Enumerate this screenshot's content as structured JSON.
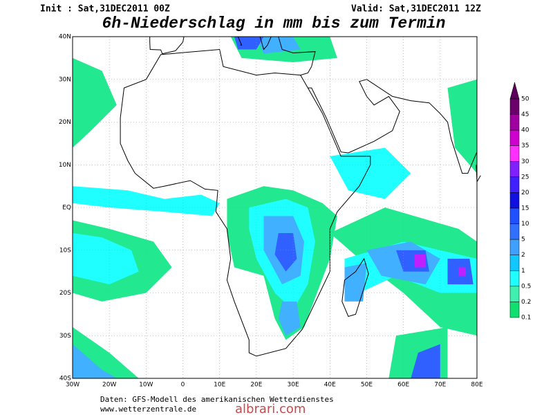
{
  "header": {
    "init": "Init : Sat,31DEC2011 00Z",
    "valid": "Valid: Sat,31DEC2011 12Z",
    "title": "6h-Niederschlag in mm bis zum Termin"
  },
  "map": {
    "lat_labels": [
      "40N",
      "30N",
      "20N",
      "10N",
      "EQ",
      "10S",
      "20S",
      "30S",
      "40S"
    ],
    "lon_labels": [
      "30W",
      "20W",
      "10W",
      "0",
      "10E",
      "20E",
      "30E",
      "40E",
      "50E",
      "60E",
      "70E",
      "80E"
    ]
  },
  "legend": {
    "labels": [
      "50",
      "45",
      "40",
      "35",
      "30",
      "25",
      "20",
      "15",
      "10",
      "5",
      "2",
      "1",
      "0.5",
      "0.2",
      "0.1"
    ]
  },
  "footer": {
    "source": "Daten: GFS-Modell des amerikanischen Wetterdienstes",
    "url": "www.wetterzentrale.de",
    "watermark": "albrari.com"
  }
}
